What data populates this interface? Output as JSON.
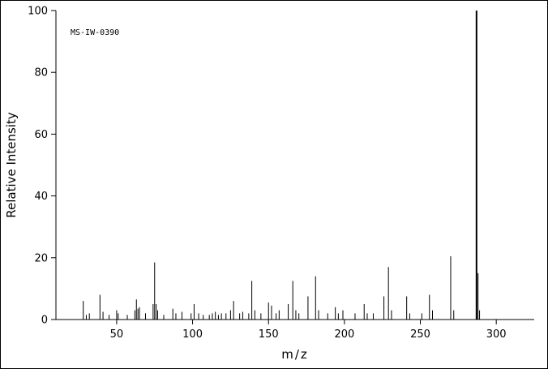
{
  "chart_data": {
    "type": "bar",
    "subtype": "mass-spectrum-stick-plot",
    "title": "",
    "annotation": "MS-IW-0390",
    "xlabel": "m/z",
    "ylabel": "Relative Intensity",
    "xlim": [
      10,
      325
    ],
    "ylim": [
      0,
      100
    ],
    "x_ticks": [
      50,
      100,
      150,
      200,
      250,
      300
    ],
    "y_ticks": [
      0,
      20,
      40,
      60,
      80,
      100
    ],
    "grid": false,
    "legend": "none",
    "axis_color": "#000000",
    "peak_color": "#000000",
    "background_color": "#ffffff",
    "peaks": [
      {
        "mz": 28,
        "intensity": 6
      },
      {
        "mz": 30,
        "intensity": 1.5
      },
      {
        "mz": 32,
        "intensity": 2
      },
      {
        "mz": 39,
        "intensity": 8
      },
      {
        "mz": 41,
        "intensity": 2.5
      },
      {
        "mz": 45,
        "intensity": 1.5
      },
      {
        "mz": 50,
        "intensity": 3
      },
      {
        "mz": 51,
        "intensity": 2
      },
      {
        "mz": 57,
        "intensity": 1.5
      },
      {
        "mz": 62,
        "intensity": 3
      },
      {
        "mz": 63,
        "intensity": 6.5
      },
      {
        "mz": 64,
        "intensity": 3.5
      },
      {
        "mz": 65,
        "intensity": 4
      },
      {
        "mz": 69,
        "intensity": 2
      },
      {
        "mz": 74,
        "intensity": 5
      },
      {
        "mz": 75,
        "intensity": 18.5
      },
      {
        "mz": 76,
        "intensity": 5
      },
      {
        "mz": 77,
        "intensity": 3
      },
      {
        "mz": 81,
        "intensity": 1.5
      },
      {
        "mz": 87,
        "intensity": 3.5
      },
      {
        "mz": 89,
        "intensity": 2
      },
      {
        "mz": 93,
        "intensity": 2.5
      },
      {
        "mz": 99,
        "intensity": 2
      },
      {
        "mz": 101,
        "intensity": 5
      },
      {
        "mz": 104,
        "intensity": 2
      },
      {
        "mz": 107,
        "intensity": 1.5
      },
      {
        "mz": 111,
        "intensity": 1.5
      },
      {
        "mz": 113,
        "intensity": 2
      },
      {
        "mz": 115,
        "intensity": 2.5
      },
      {
        "mz": 117,
        "intensity": 1.5
      },
      {
        "mz": 119,
        "intensity": 2
      },
      {
        "mz": 122,
        "intensity": 2
      },
      {
        "mz": 125,
        "intensity": 3
      },
      {
        "mz": 127,
        "intensity": 6
      },
      {
        "mz": 131,
        "intensity": 2
      },
      {
        "mz": 133,
        "intensity": 2.5
      },
      {
        "mz": 137,
        "intensity": 2
      },
      {
        "mz": 139,
        "intensity": 12.5
      },
      {
        "mz": 141,
        "intensity": 3
      },
      {
        "mz": 145,
        "intensity": 2
      },
      {
        "mz": 150,
        "intensity": 5.5
      },
      {
        "mz": 152,
        "intensity": 4.5
      },
      {
        "mz": 155,
        "intensity": 2
      },
      {
        "mz": 157,
        "intensity": 3
      },
      {
        "mz": 163,
        "intensity": 5
      },
      {
        "mz": 166,
        "intensity": 12.5
      },
      {
        "mz": 168,
        "intensity": 3
      },
      {
        "mz": 170,
        "intensity": 2
      },
      {
        "mz": 176,
        "intensity": 7.5
      },
      {
        "mz": 181,
        "intensity": 14
      },
      {
        "mz": 183,
        "intensity": 3
      },
      {
        "mz": 189,
        "intensity": 2
      },
      {
        "mz": 194,
        "intensity": 4
      },
      {
        "mz": 196,
        "intensity": 2
      },
      {
        "mz": 199,
        "intensity": 3
      },
      {
        "mz": 207,
        "intensity": 2
      },
      {
        "mz": 213,
        "intensity": 5
      },
      {
        "mz": 215,
        "intensity": 2
      },
      {
        "mz": 219,
        "intensity": 2
      },
      {
        "mz": 226,
        "intensity": 7.5
      },
      {
        "mz": 229,
        "intensity": 17
      },
      {
        "mz": 231,
        "intensity": 3
      },
      {
        "mz": 241,
        "intensity": 7.5
      },
      {
        "mz": 243,
        "intensity": 2
      },
      {
        "mz": 251,
        "intensity": 2
      },
      {
        "mz": 256,
        "intensity": 8
      },
      {
        "mz": 258,
        "intensity": 3
      },
      {
        "mz": 270,
        "intensity": 20.5
      },
      {
        "mz": 272,
        "intensity": 3
      },
      {
        "mz": 287,
        "intensity": 100
      },
      {
        "mz": 288,
        "intensity": 15
      },
      {
        "mz": 289,
        "intensity": 3
      }
    ]
  }
}
